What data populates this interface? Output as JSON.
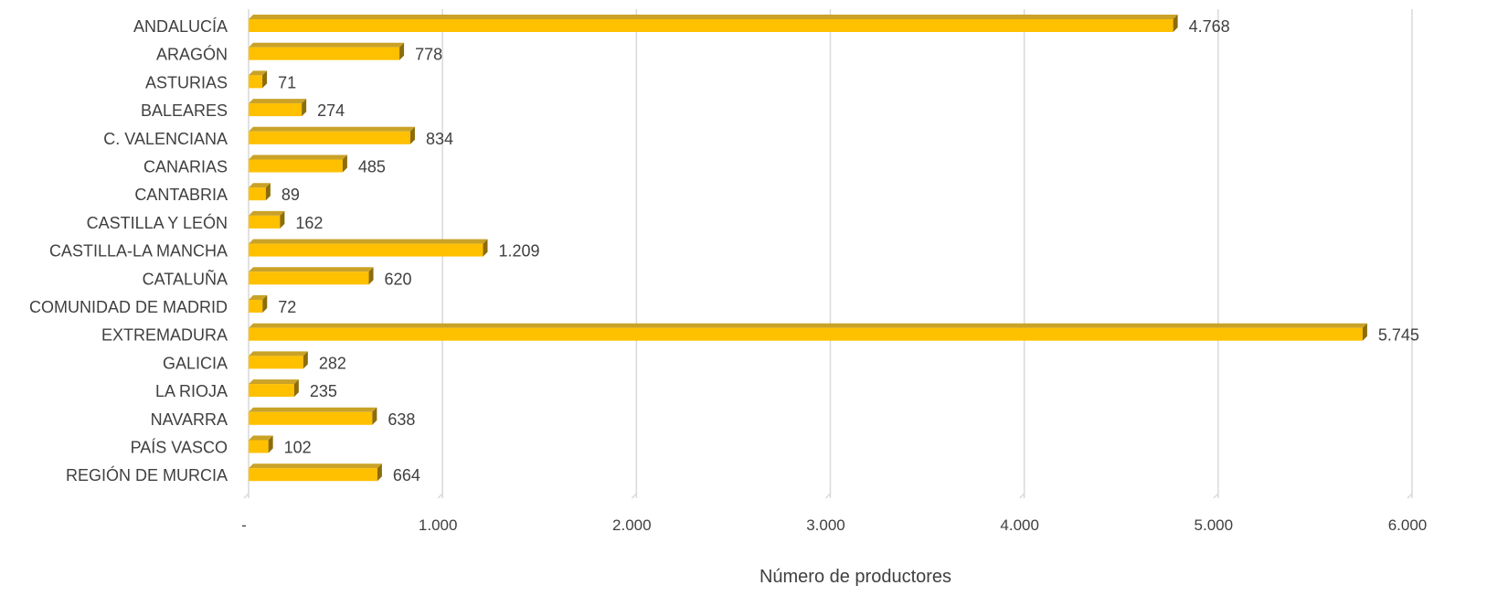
{
  "chart_data": {
    "type": "bar",
    "orientation": "horizontal",
    "style": "3d",
    "categories": [
      "ANDALUCÍA",
      "ARAGÓN",
      "ASTURIAS",
      "BALEARES",
      "C. VALENCIANA",
      "CANARIAS",
      "CANTABRIA",
      "CASTILLA Y LEÓN",
      "CASTILLA-LA MANCHA",
      "CATALUÑA",
      "COMUNIDAD DE MADRID",
      "EXTREMADURA",
      "GALICIA",
      "LA RIOJA",
      "NAVARRA",
      "PAÍS VASCO",
      "REGIÓN DE MURCIA"
    ],
    "values": [
      4768,
      778,
      71,
      274,
      834,
      485,
      89,
      162,
      1209,
      620,
      72,
      5745,
      282,
      235,
      638,
      102,
      664
    ],
    "value_labels": [
      "4.768",
      "778",
      "71",
      "274",
      "834",
      "485",
      "89",
      "162",
      "1.209",
      "620",
      "72",
      "5.745",
      "282",
      "235",
      "638",
      "102",
      "664"
    ],
    "xlim": [
      0,
      6000
    ],
    "ticks": [
      0,
      1000,
      2000,
      3000,
      4000,
      5000,
      6000
    ],
    "tick_labels": [
      "-",
      "1.000",
      "2.000",
      "3.000",
      "4.000",
      "5.000",
      "6.000"
    ],
    "xlabel": "Número de productores",
    "ylabel": "",
    "title": "",
    "grid": "vertical",
    "legend": "none",
    "colors": {
      "bar_front": "#FFC000",
      "bar_top": "#C9A227",
      "bar_side": "#8C6D0A",
      "grid": "#D9D9D9",
      "text": "#404040"
    }
  }
}
